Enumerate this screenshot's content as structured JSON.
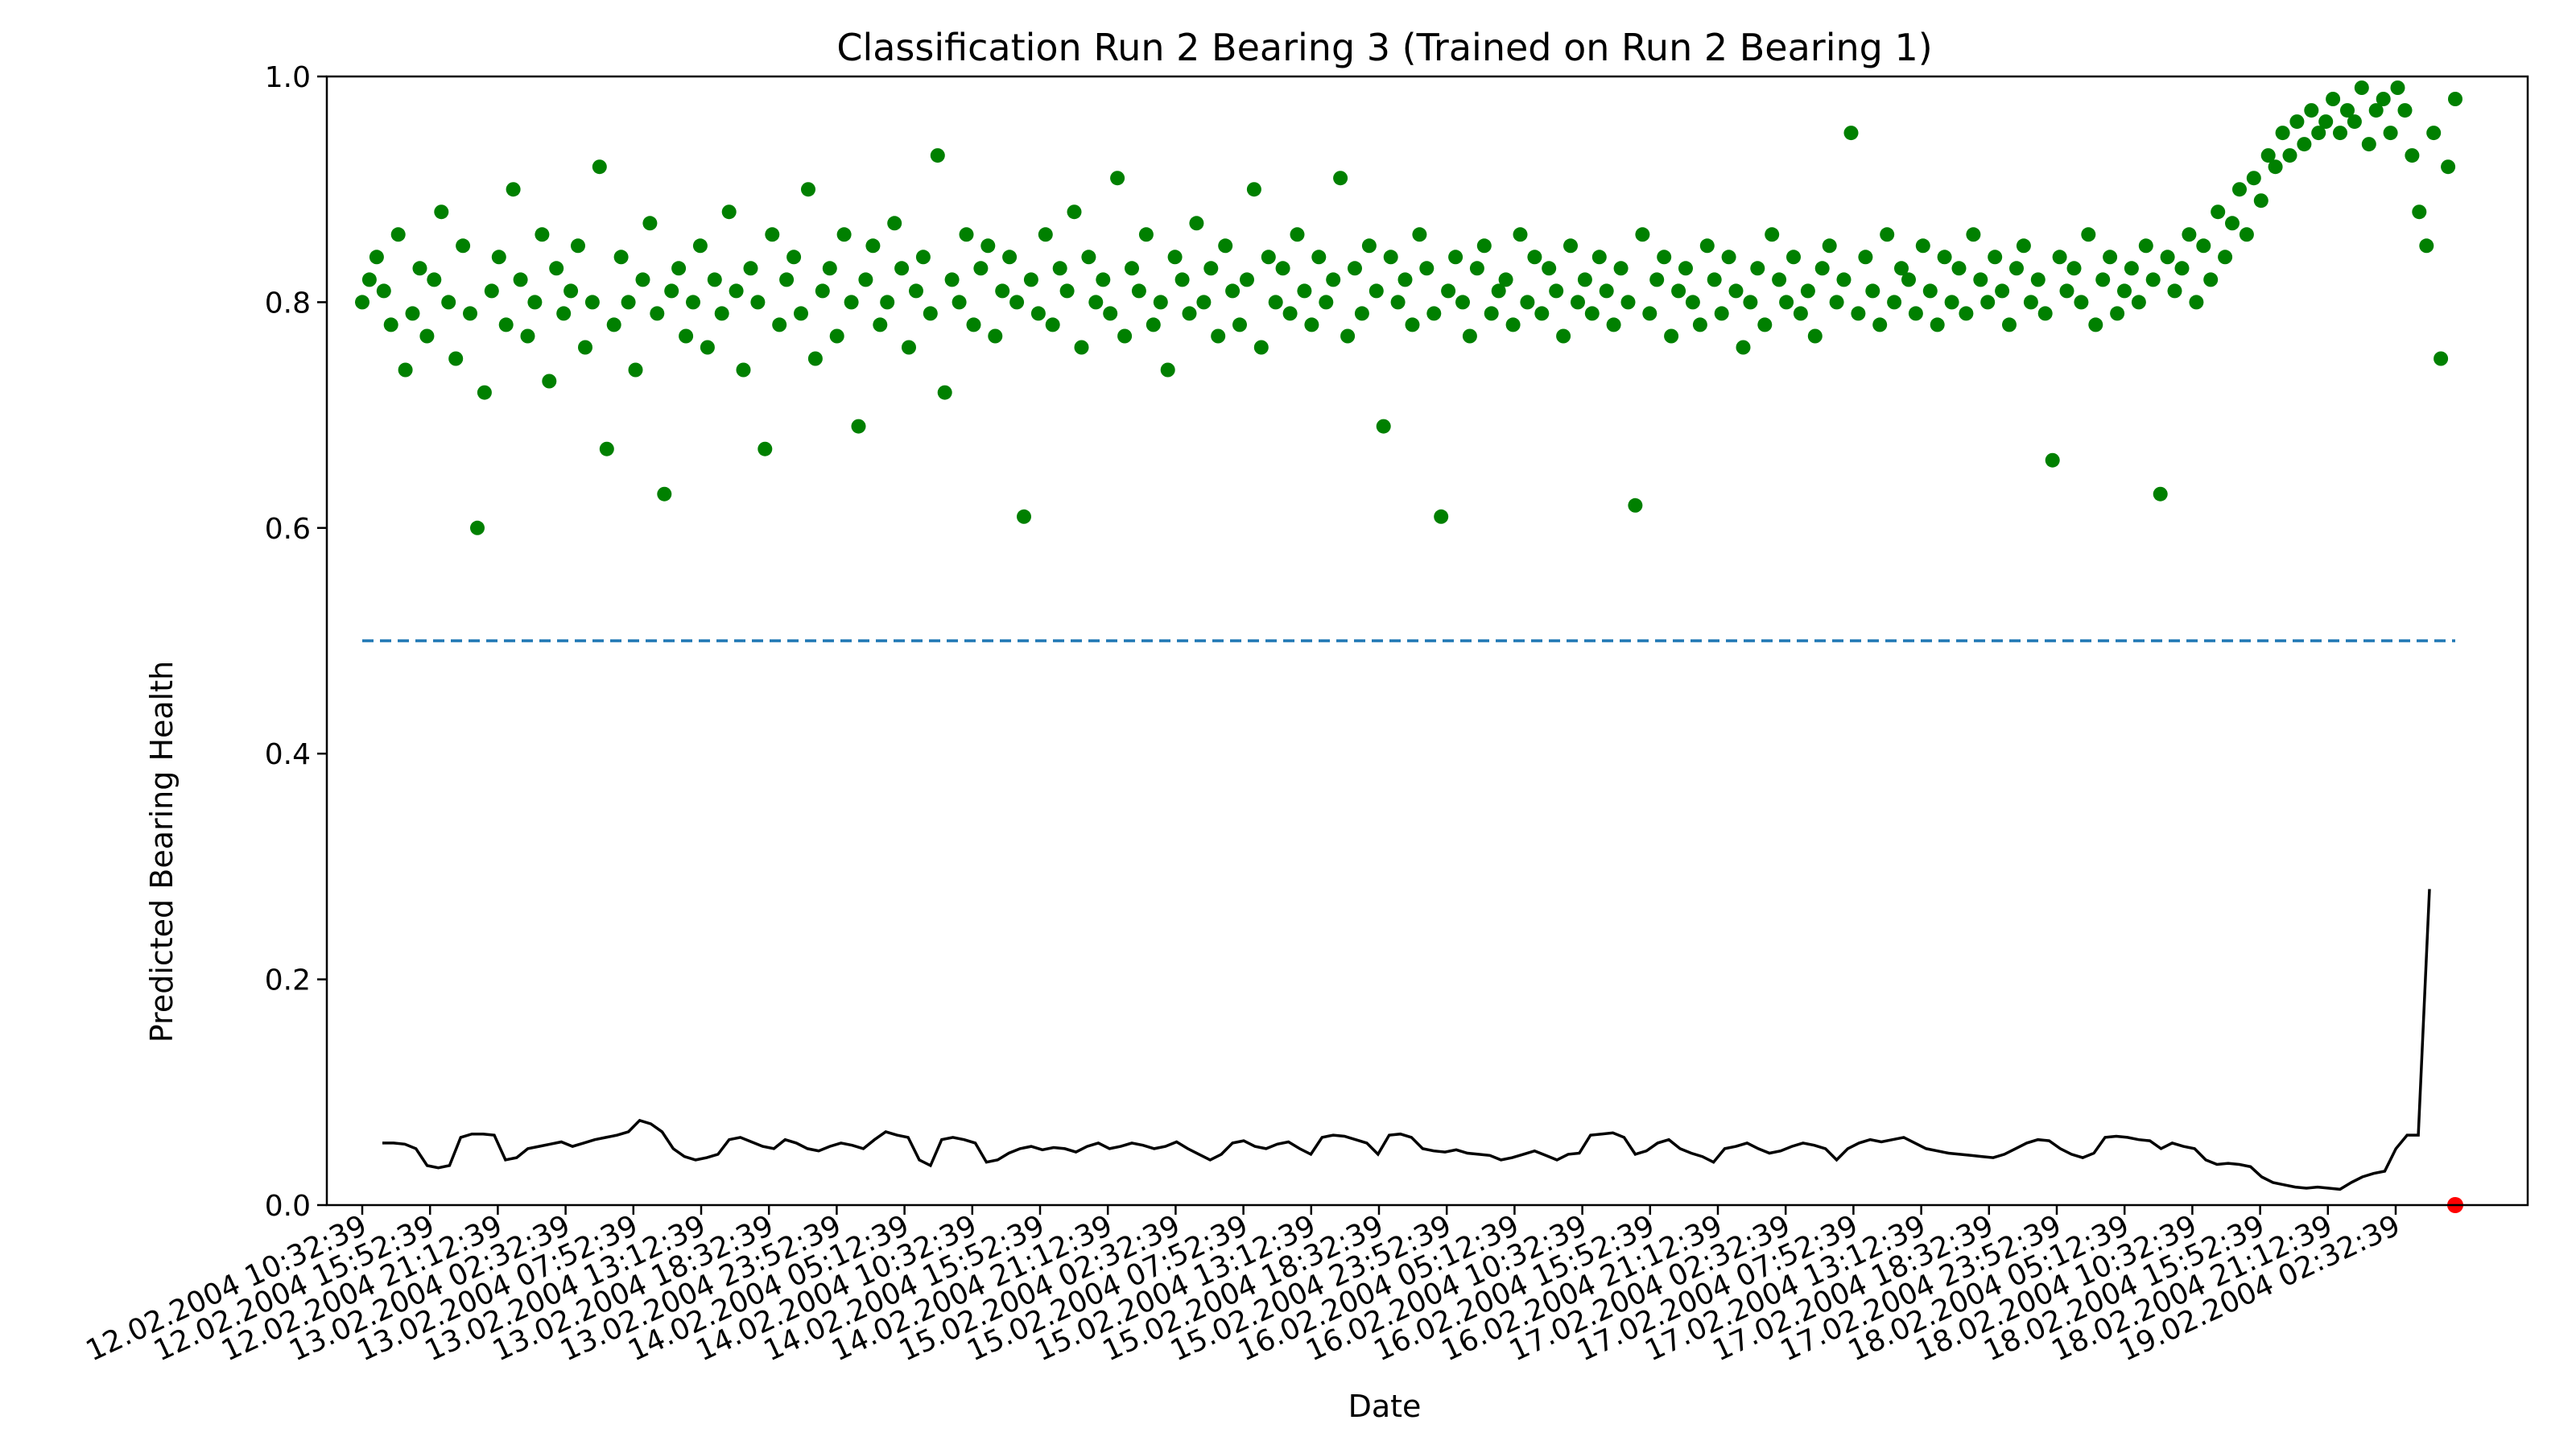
{
  "chart_data": {
    "type": "scatter",
    "title": "Classification Run 2 Bearing 3 (Trained on Run 2 Bearing 1)",
    "xlabel": "Date",
    "ylabel": "Predicted Bearing Health",
    "ylim": [
      0,
      1
    ],
    "yticks": [
      "0.0",
      "0.2",
      "0.4",
      "0.6",
      "0.8",
      "1.0"
    ],
    "xticks": [
      "12.02.2004 10:32:39",
      "12.02.2004 15:52:39",
      "12.02.2004 21:12:39",
      "13.02.2004 02:32:39",
      "13.02.2004 07:52:39",
      "13.02.2004 13:12:39",
      "13.02.2004 18:32:39",
      "13.02.2004 23:52:39",
      "14.02.2004 05:12:39",
      "14.02.2004 10:32:39",
      "14.02.2004 15:52:39",
      "14.02.2004 21:12:39",
      "15.02.2004 02:32:39",
      "15.02.2004 07:52:39",
      "15.02.2004 13:12:39",
      "15.02.2004 18:32:39",
      "15.02.2004 23:52:39",
      "16.02.2004 05:12:39",
      "16.02.2004 10:32:39",
      "16.02.2004 15:52:39",
      "16.02.2004 21:12:39",
      "17.02.2004 02:32:39",
      "17.02.2004 07:52:39",
      "17.02.2004 13:12:39",
      "17.02.2004 18:32:39",
      "17.02.2004 23:52:39",
      "18.02.2004 05:12:39",
      "18.02.2004 10:32:39",
      "18.02.2004 15:52:39",
      "18.02.2004 21:12:39",
      "19.02.2004 02:32:39"
    ],
    "grid": false,
    "colors": {
      "healthy_points": "#008000",
      "failure_point": "#ff0000",
      "threshold_line": "#1f77b4",
      "rolling_line": "#000000"
    },
    "series": [
      {
        "type": "scatter",
        "values": [
          0.8,
          0.82,
          0.84,
          0.81,
          0.78,
          0.86,
          0.74,
          0.79,
          0.83,
          0.77,
          0.82,
          0.88,
          0.8,
          0.75,
          0.85,
          0.79,
          0.6,
          0.72,
          0.81,
          0.84,
          0.78,
          0.9,
          0.82,
          0.77,
          0.8,
          0.86,
          0.73,
          0.83,
          0.79,
          0.81,
          0.85,
          0.76,
          0.8,
          0.92,
          0.67,
          0.78,
          0.84,
          0.8,
          0.74,
          0.82,
          0.87,
          0.79,
          0.63,
          0.81,
          0.83,
          0.77,
          0.8,
          0.85,
          0.76,
          0.82,
          0.79,
          0.88,
          0.81,
          0.74,
          0.83,
          0.8,
          0.67,
          0.86,
          0.78,
          0.82,
          0.84,
          0.79,
          0.9,
          0.75,
          0.81,
          0.83,
          0.77,
          0.86,
          0.8,
          0.69,
          0.82,
          0.85,
          0.78,
          0.8,
          0.87,
          0.83,
          0.76,
          0.81,
          0.84,
          0.79,
          0.93,
          0.72,
          0.82,
          0.8,
          0.86,
          0.78,
          0.83,
          0.85,
          0.77,
          0.81,
          0.84,
          0.8,
          0.61,
          0.82,
          0.79,
          0.86,
          0.78,
          0.83,
          0.81,
          0.88,
          0.76,
          0.84,
          0.8,
          0.82,
          0.79,
          0.91,
          0.77,
          0.83,
          0.81,
          0.86,
          0.78,
          0.8,
          0.74,
          0.84,
          0.82,
          0.79,
          0.87,
          0.8,
          0.83,
          0.77,
          0.85,
          0.81,
          0.78,
          0.82,
          0.9,
          0.76,
          0.84,
          0.8,
          0.83,
          0.79,
          0.86,
          0.81,
          0.78,
          0.84,
          0.8,
          0.82,
          0.91,
          0.77,
          0.83,
          0.79,
          0.85,
          0.81,
          0.69,
          0.84,
          0.8,
          0.82,
          0.78,
          0.86,
          0.83,
          0.79,
          0.61,
          0.81,
          0.84,
          0.8,
          0.77,
          0.83,
          0.85,
          0.79,
          0.81,
          0.82,
          0.78,
          0.86,
          0.8,
          0.84,
          0.79,
          0.83,
          0.81,
          0.77,
          0.85,
          0.8,
          0.82,
          0.79,
          0.84,
          0.81,
          0.78,
          0.83,
          0.8,
          0.62,
          0.86,
          0.79,
          0.82,
          0.84,
          0.77,
          0.81,
          0.83,
          0.8,
          0.78,
          0.85,
          0.82,
          0.79,
          0.84,
          0.81,
          0.76,
          0.8,
          0.83,
          0.78,
          0.86,
          0.82,
          0.8,
          0.84,
          0.79,
          0.81,
          0.77,
          0.83,
          0.85,
          0.8,
          0.82,
          0.95,
          0.79,
          0.84,
          0.81,
          0.78,
          0.86,
          0.8,
          0.83,
          0.82,
          0.79,
          0.85,
          0.81,
          0.78,
          0.84,
          0.8,
          0.83,
          0.79,
          0.86,
          0.82,
          0.8,
          0.84,
          0.81,
          0.78,
          0.83,
          0.85,
          0.8,
          0.82,
          0.79,
          0.66,
          0.84,
          0.81,
          0.83,
          0.8,
          0.86,
          0.78,
          0.82,
          0.84,
          0.79,
          0.81,
          0.83,
          0.8,
          0.85,
          0.82,
          0.63,
          0.84,
          0.81,
          0.83,
          0.86,
          0.8,
          0.85,
          0.82,
          0.88,
          0.84,
          0.87,
          0.9,
          0.86,
          0.91,
          0.89,
          0.93,
          0.92,
          0.95,
          0.93,
          0.96,
          0.94,
          0.97,
          0.95,
          0.96,
          0.98,
          0.95,
          0.97,
          0.96,
          0.99,
          0.94,
          0.97,
          0.98,
          0.95,
          0.99,
          0.97,
          0.93,
          0.88,
          0.85,
          0.95,
          0.75,
          0.92,
          0.98
        ]
      },
      {
        "type": "line",
        "values": [
          0.055,
          0.055,
          0.054,
          0.05,
          0.035,
          0.033,
          0.035,
          0.06,
          0.063,
          0.063,
          0.062,
          0.04,
          0.042,
          0.05,
          0.052,
          0.054,
          0.056,
          0.052,
          0.055,
          0.058,
          0.06,
          0.062,
          0.065,
          0.075,
          0.072,
          0.065,
          0.05,
          0.043,
          0.04,
          0.042,
          0.045,
          0.058,
          0.06,
          0.056,
          0.052,
          0.05,
          0.058,
          0.055,
          0.05,
          0.048,
          0.052,
          0.055,
          0.053,
          0.05,
          0.058,
          0.065,
          0.062,
          0.06,
          0.04,
          0.035,
          0.058,
          0.06,
          0.058,
          0.055,
          0.038,
          0.04,
          0.046,
          0.05,
          0.052,
          0.049,
          0.051,
          0.05,
          0.047,
          0.052,
          0.055,
          0.05,
          0.052,
          0.055,
          0.053,
          0.05,
          0.052,
          0.056,
          0.05,
          0.045,
          0.04,
          0.045,
          0.055,
          0.057,
          0.052,
          0.05,
          0.054,
          0.056,
          0.05,
          0.045,
          0.06,
          0.062,
          0.061,
          0.058,
          0.055,
          0.045,
          0.062,
          0.063,
          0.06,
          0.05,
          0.048,
          0.047,
          0.049,
          0.046,
          0.045,
          0.044,
          0.04,
          0.042,
          0.045,
          0.048,
          0.044,
          0.04,
          0.045,
          0.046,
          0.062,
          0.063,
          0.064,
          0.06,
          0.045,
          0.048,
          0.055,
          0.058,
          0.05,
          0.046,
          0.043,
          0.038,
          0.05,
          0.052,
          0.055,
          0.05,
          0.046,
          0.048,
          0.052,
          0.055,
          0.053,
          0.05,
          0.04,
          0.05,
          0.055,
          0.058,
          0.056,
          0.058,
          0.06,
          0.055,
          0.05,
          0.048,
          0.046,
          0.045,
          0.044,
          0.043,
          0.042,
          0.045,
          0.05,
          0.055,
          0.058,
          0.057,
          0.05,
          0.045,
          0.042,
          0.046,
          0.06,
          0.061,
          0.06,
          0.058,
          0.057,
          0.05,
          0.055,
          0.052,
          0.05,
          0.04,
          0.036,
          0.037,
          0.036,
          0.034,
          0.025,
          0.02,
          0.018,
          0.016,
          0.015,
          0.016,
          0.015,
          0.014,
          0.02,
          0.025,
          0.028,
          0.03,
          0.05,
          0.062,
          0.062,
          0.28
        ]
      },
      {
        "type": "threshold",
        "values": [
          0.5,
          0.5
        ]
      },
      {
        "type": "scatter-red",
        "values": [
          0.0
        ]
      }
    ]
  }
}
